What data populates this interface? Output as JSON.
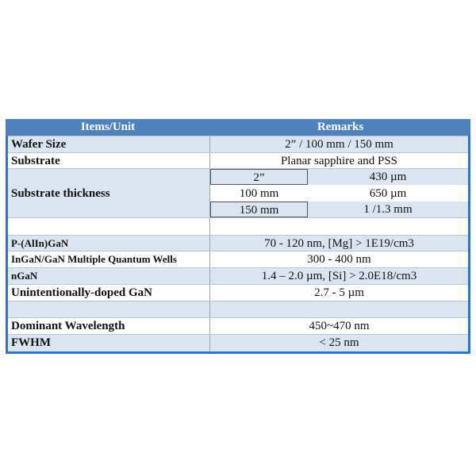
{
  "header": {
    "col1": "Items/Unit",
    "col2": "Remarks"
  },
  "rows": [
    {
      "item": "Wafer Size",
      "remark": "2” / 100 mm / 150 mm"
    },
    {
      "item": "Substrate",
      "remark": "Planar sapphire and PSS"
    },
    {
      "item": "Substrate thickness",
      "sub": [
        {
          "size": "2”",
          "value": "430 µm"
        },
        {
          "size": "100 mm",
          "value": "650 µm"
        },
        {
          "size": "150 mm",
          "value": "1 /1.3 mm"
        }
      ]
    },
    {
      "item": "",
      "remark": ""
    },
    {
      "item": "P-(AlIn)GaN",
      "remark": "70 - 120 nm, [Mg] > 1E19/cm3"
    },
    {
      "item": "InGaN/GaN Multiple Quantum Wells",
      "remark": "300 - 400 nm"
    },
    {
      "item": "nGaN",
      "remark": "1.4 – 2.0 µm, [Si] > 2.0E18/cm3"
    },
    {
      "item": "Unintentionally-doped GaN",
      "remark": "2.7 - 5 µm"
    },
    {
      "item": "",
      "remark": ""
    },
    {
      "item": "Dominant Wavelength",
      "remark": "450~470 nm"
    },
    {
      "item": "FWHM",
      "remark": "< 25 nm"
    }
  ],
  "colors": {
    "header": "#4f81bd",
    "stripe": "#dbe5f1",
    "border": "#2e75c8"
  }
}
